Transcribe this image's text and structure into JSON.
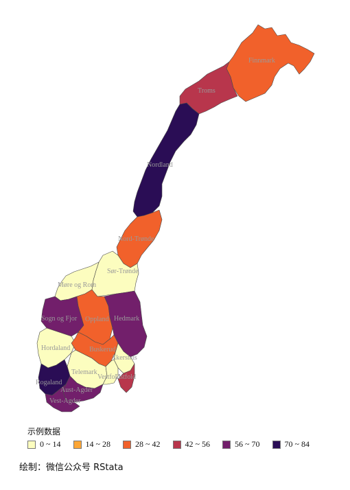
{
  "legend": {
    "title": "示例数据",
    "items": [
      {
        "label": "0 ~ 14",
        "color": "#fcfdbf"
      },
      {
        "label": "14 ~ 28",
        "color": "#fca636"
      },
      {
        "label": "28 ~ 42",
        "color": "#f1612b"
      },
      {
        "label": "42 ~ 56",
        "color": "#b8364c"
      },
      {
        "label": "56 ~ 70",
        "color": "#721f6b"
      },
      {
        "label": "70 ~ 84",
        "color": "#2a0d55"
      }
    ]
  },
  "regions": [
    {
      "name": "Finnmark",
      "class": "28 ~ 42"
    },
    {
      "name": "Troms",
      "class": "42 ~ 56"
    },
    {
      "name": "Nordland",
      "class": "70 ~ 84"
    },
    {
      "name": "Nord-Trønde",
      "class": "28 ~ 42"
    },
    {
      "name": "Sør-Trønde",
      "class": "0 ~ 14"
    },
    {
      "name": "Møre og Rom",
      "class": "0 ~ 14"
    },
    {
      "name": "Sogn og Fjor",
      "class": "56 ~ 70"
    },
    {
      "name": "Oppland",
      "class": "28 ~ 42"
    },
    {
      "name": "Hedmark",
      "class": "56 ~ 70"
    },
    {
      "name": "Hordaland",
      "class": "0 ~ 14"
    },
    {
      "name": "Buskerud",
      "class": "28 ~ 42"
    },
    {
      "name": "Akershus",
      "class": "0 ~ 14"
    },
    {
      "name": "Telemark",
      "class": "0 ~ 14"
    },
    {
      "name": "Vestfold",
      "class": "0 ~ 14"
    },
    {
      "name": "Østfold",
      "class": "42 ~ 56"
    },
    {
      "name": "Rogaland",
      "class": "70 ~ 84"
    },
    {
      "name": "Aust-Agder",
      "class": "56 ~ 70"
    },
    {
      "name": "Vest-Agder",
      "class": "56 ~ 70"
    }
  ],
  "caption": "绘制：微信公众号 RStata"
}
